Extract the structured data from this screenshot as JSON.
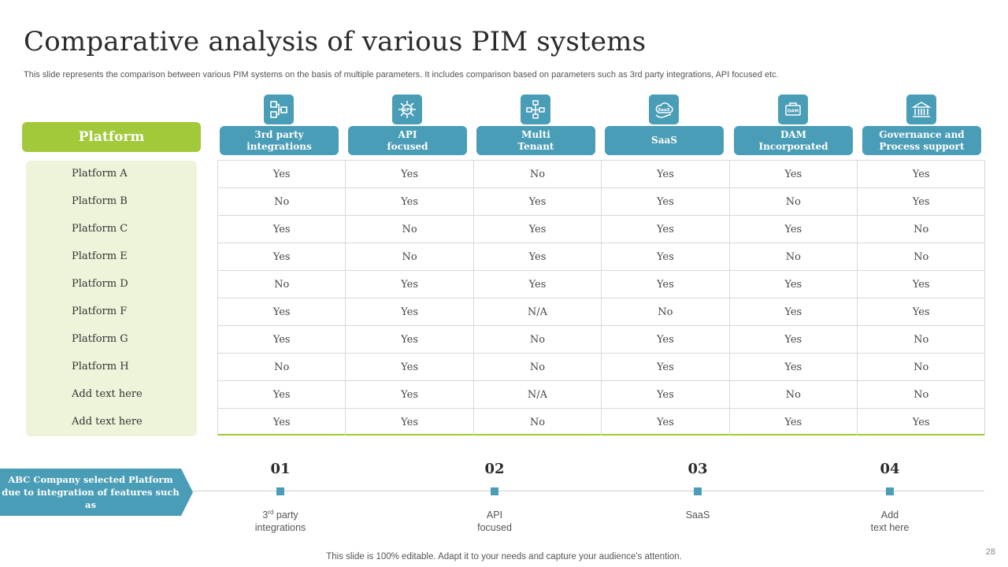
{
  "title": "Comparative analysis of various PIM systems",
  "subtitle": "This slide represents the comparison between various PIM systems on the basis of multiple parameters. It includes comparison based on parameters such as 3rd party integrations, API focused etc.",
  "platform_header": "Platform",
  "columns": [
    {
      "label": "3rd party\nintegrations",
      "icon": "integration-icon"
    },
    {
      "label": "API\nfocused",
      "icon": "api-gear-icon"
    },
    {
      "label": "Multi\nTenant",
      "icon": "network-icon"
    },
    {
      "label": "SaaS",
      "icon": "saas-cloud-icon"
    },
    {
      "label": "DAM\nIncorporated",
      "icon": "dam-icon"
    },
    {
      "label": "Governance and\nProcess support",
      "icon": "government-building-icon"
    }
  ],
  "rows": [
    {
      "platform": "Platform A",
      "values": [
        "Yes",
        "Yes",
        "No",
        "Yes",
        "Yes",
        "Yes"
      ]
    },
    {
      "platform": "Platform B",
      "values": [
        "No",
        "Yes",
        "Yes",
        "Yes",
        "No",
        "Yes"
      ]
    },
    {
      "platform": "Platform C",
      "values": [
        "Yes",
        "No",
        "Yes",
        "Yes",
        "Yes",
        "No"
      ]
    },
    {
      "platform": "Platform E",
      "values": [
        "Yes",
        "No",
        "Yes",
        "Yes",
        "No",
        "No"
      ]
    },
    {
      "platform": "Platform D",
      "values": [
        "No",
        "Yes",
        "Yes",
        "Yes",
        "Yes",
        "Yes"
      ]
    },
    {
      "platform": "Platform F",
      "values": [
        "Yes",
        "Yes",
        "N/A",
        "No",
        "Yes",
        "Yes"
      ]
    },
    {
      "platform": "Platform G",
      "values": [
        "Yes",
        "Yes",
        "No",
        "Yes",
        "Yes",
        "No"
      ]
    },
    {
      "platform": "Platform H",
      "values": [
        "No",
        "Yes",
        "No",
        "Yes",
        "Yes",
        "No"
      ]
    },
    {
      "platform": "Add text here",
      "values": [
        "Yes",
        "Yes",
        "N/A",
        "Yes",
        "No",
        "No"
      ]
    },
    {
      "platform": "Add text here",
      "values": [
        "Yes",
        "Yes",
        "No",
        "Yes",
        "Yes",
        "Yes"
      ]
    }
  ],
  "banner": "ABC Company selected Platform due to integration of features such as",
  "steps": [
    {
      "num": "01",
      "label_main": "3",
      "label_sup": "rd",
      "label_rest": " party",
      "label_line2": "integrations"
    },
    {
      "num": "02",
      "label_main": "API",
      "label_sup": "",
      "label_rest": "",
      "label_line2": "focused"
    },
    {
      "num": "03",
      "label_main": "SaaS",
      "label_sup": "",
      "label_rest": "",
      "label_line2": ""
    },
    {
      "num": "04",
      "label_main": "Add",
      "label_sup": "",
      "label_rest": "",
      "label_line2": "text here"
    }
  ],
  "footer": "This slide is 100% editable. Adapt it to your needs and capture your audience's attention.",
  "page_number": "28",
  "colors": {
    "teal": "#4a9db6",
    "green": "#a1c93a",
    "panel": "#edf4da"
  }
}
